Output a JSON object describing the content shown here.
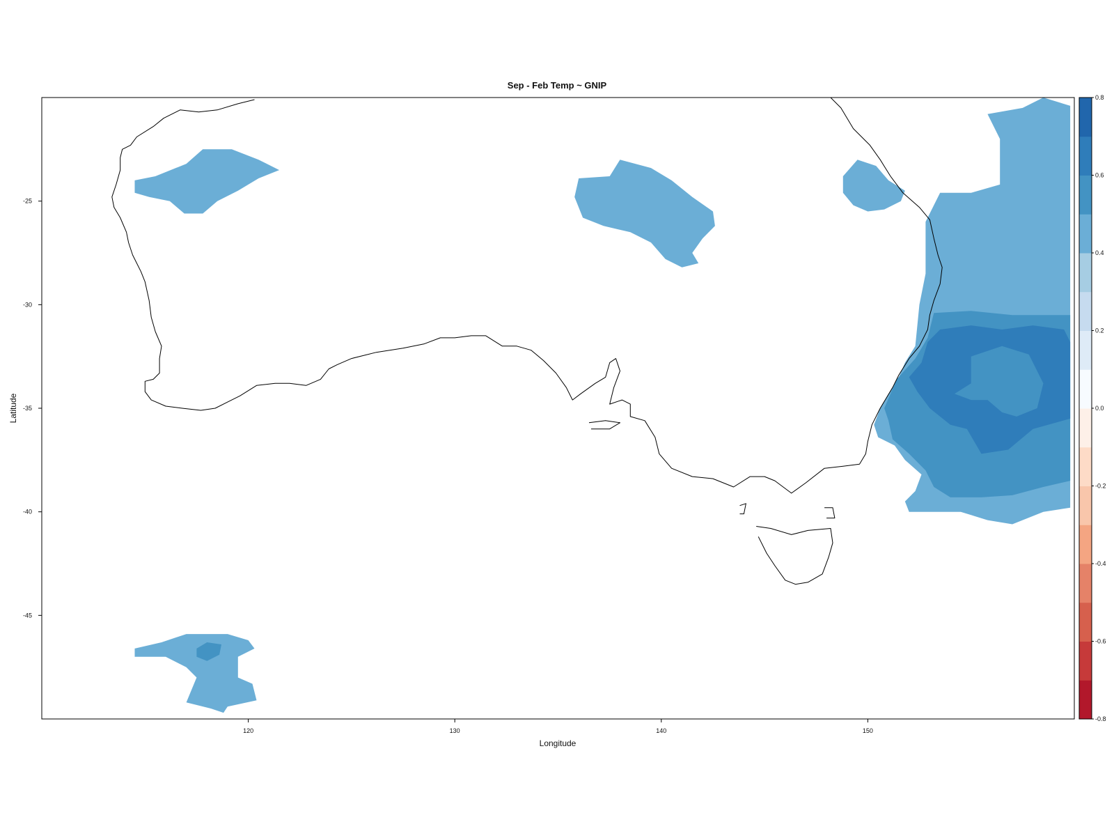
{
  "chart_data": {
    "type": "heatmap",
    "title": "Sep - Feb Temp ~ GNIP",
    "xlabel": "Longitude",
    "ylabel": "Latitude",
    "xlim": [
      110,
      160
    ],
    "ylim": [
      -50,
      -20
    ],
    "xticks": [
      120,
      130,
      140,
      150
    ],
    "xtick_labels": [
      "120",
      "130",
      "140",
      "150"
    ],
    "yticks": [
      -25,
      -30,
      -35,
      -40,
      -45
    ],
    "ytick_labels": [
      "-25",
      "-30",
      "-35",
      "-40",
      "-45"
    ],
    "grid": false,
    "colorbar": {
      "placement": "right",
      "range": [
        -0.8,
        0.8
      ],
      "bins": [
        {
          "from": -0.8,
          "to": -0.7,
          "color": "#b2182b"
        },
        {
          "from": -0.7,
          "to": -0.6,
          "color": "#c63a3a"
        },
        {
          "from": -0.6,
          "to": -0.5,
          "color": "#d6604d"
        },
        {
          "from": -0.5,
          "to": -0.4,
          "color": "#e58268"
        },
        {
          "from": -0.4,
          "to": -0.3,
          "color": "#f4a582"
        },
        {
          "from": -0.3,
          "to": -0.2,
          "color": "#f9c6ab"
        },
        {
          "from": -0.2,
          "to": -0.1,
          "color": "#fddbc7"
        },
        {
          "from": -0.1,
          "to": 0.0,
          "color": "#fdf0e8"
        },
        {
          "from": 0.0,
          "to": 0.1,
          "color": "#f7fbff"
        },
        {
          "from": 0.1,
          "to": 0.2,
          "color": "#deebf7"
        },
        {
          "from": 0.2,
          "to": 0.3,
          "color": "#c6dbef"
        },
        {
          "from": 0.3,
          "to": 0.4,
          "color": "#a6cde3"
        },
        {
          "from": 0.4,
          "to": 0.5,
          "color": "#6baed6"
        },
        {
          "from": 0.5,
          "to": 0.6,
          "color": "#4393c3"
        },
        {
          "from": 0.6,
          "to": 0.7,
          "color": "#2f7dba"
        },
        {
          "from": 0.7,
          "to": 0.8,
          "color": "#2166ac"
        }
      ],
      "ticks": [
        0.8,
        0.6,
        0.4,
        0.2,
        0.0,
        -0.2,
        -0.4,
        -0.6,
        -0.8
      ],
      "tick_labels": [
        "0.8",
        "0.6",
        "0.4",
        "0.2",
        "0.0",
        "-0.2",
        "-0.4",
        "-0.6",
        "-0.8"
      ]
    },
    "regions": [
      {
        "value": 0.45,
        "polygon": [
          [
            115.5,
            -23.8
          ],
          [
            117.0,
            -23.2
          ],
          [
            117.8,
            -22.5
          ],
          [
            119.2,
            -22.5
          ],
          [
            120.5,
            -23.0
          ],
          [
            121.5,
            -23.5
          ],
          [
            120.5,
            -23.9
          ],
          [
            119.5,
            -24.5
          ],
          [
            118.5,
            -25.0
          ],
          [
            117.8,
            -25.6
          ],
          [
            116.9,
            -25.6
          ],
          [
            116.2,
            -25.0
          ],
          [
            115.2,
            -24.8
          ],
          [
            114.5,
            -24.6
          ],
          [
            114.5,
            -24.0
          ]
        ]
      },
      {
        "value": 0.45,
        "polygon": [
          [
            136.0,
            -23.9
          ],
          [
            137.5,
            -23.8
          ],
          [
            138.0,
            -23.0
          ],
          [
            139.5,
            -23.4
          ],
          [
            140.5,
            -24.0
          ],
          [
            141.5,
            -24.8
          ],
          [
            142.5,
            -25.5
          ],
          [
            142.6,
            -26.2
          ],
          [
            142.0,
            -26.8
          ],
          [
            141.5,
            -27.5
          ],
          [
            141.8,
            -28.0
          ],
          [
            141.0,
            -28.2
          ],
          [
            140.2,
            -27.8
          ],
          [
            139.5,
            -27.0
          ],
          [
            138.5,
            -26.5
          ],
          [
            137.2,
            -26.2
          ],
          [
            136.2,
            -25.8
          ],
          [
            135.8,
            -24.8
          ]
        ]
      },
      {
        "value": 0.45,
        "polygon": [
          [
            148.8,
            -23.8
          ],
          [
            149.5,
            -23.0
          ],
          [
            150.4,
            -23.3
          ],
          [
            151.0,
            -24.0
          ],
          [
            151.8,
            -24.5
          ],
          [
            151.6,
            -25.0
          ],
          [
            150.8,
            -25.4
          ],
          [
            150.0,
            -25.5
          ],
          [
            149.3,
            -25.2
          ],
          [
            148.8,
            -24.6
          ]
        ]
      },
      {
        "value": 0.45,
        "polygon": [
          [
            152.8,
            -26.0
          ],
          [
            153.5,
            -24.6
          ],
          [
            155.0,
            -24.6
          ],
          [
            156.4,
            -24.2
          ],
          [
            156.4,
            -22.0
          ],
          [
            155.8,
            -20.8
          ],
          [
            157.5,
            -20.5
          ],
          [
            158.5,
            -20.0
          ],
          [
            159.8,
            -20.4
          ],
          [
            159.8,
            -39.8
          ],
          [
            158.5,
            -40.0
          ],
          [
            157.0,
            -40.6
          ],
          [
            155.8,
            -40.4
          ],
          [
            154.5,
            -40.0
          ],
          [
            152.0,
            -40.0
          ],
          [
            151.8,
            -39.5
          ],
          [
            152.3,
            -39.0
          ],
          [
            152.6,
            -38.2
          ],
          [
            151.8,
            -37.5
          ],
          [
            151.3,
            -36.8
          ],
          [
            150.5,
            -36.4
          ],
          [
            150.3,
            -35.8
          ],
          [
            150.6,
            -35.0
          ],
          [
            151.0,
            -34.3
          ],
          [
            151.5,
            -33.5
          ],
          [
            151.8,
            -32.8
          ],
          [
            152.3,
            -32.0
          ],
          [
            152.5,
            -30.0
          ],
          [
            152.8,
            -28.5
          ]
        ]
      },
      {
        "value": 0.55,
        "polygon": [
          [
            150.8,
            -35.0
          ],
          [
            151.4,
            -33.6
          ],
          [
            152.3,
            -32.6
          ],
          [
            152.9,
            -31.6
          ],
          [
            153.2,
            -30.4
          ],
          [
            155.0,
            -30.3
          ],
          [
            157.0,
            -30.5
          ],
          [
            159.8,
            -30.5
          ],
          [
            159.8,
            -38.5
          ],
          [
            158.5,
            -38.8
          ],
          [
            157.0,
            -39.2
          ],
          [
            155.5,
            -39.3
          ],
          [
            154.0,
            -39.3
          ],
          [
            153.2,
            -38.8
          ],
          [
            152.8,
            -38.0
          ],
          [
            152.0,
            -37.2
          ],
          [
            151.2,
            -36.5
          ],
          [
            151.0,
            -35.6
          ]
        ]
      },
      {
        "value": 0.65,
        "polygon": [
          [
            152.0,
            -33.5
          ],
          [
            152.6,
            -32.8
          ],
          [
            152.9,
            -31.8
          ],
          [
            153.5,
            -31.2
          ],
          [
            155.0,
            -31.0
          ],
          [
            156.5,
            -31.2
          ],
          [
            158.0,
            -31.0
          ],
          [
            159.5,
            -31.2
          ],
          [
            159.8,
            -31.8
          ],
          [
            159.8,
            -35.5
          ],
          [
            158.0,
            -36.0
          ],
          [
            156.8,
            -37.0
          ],
          [
            155.5,
            -37.2
          ],
          [
            154.8,
            -36.0
          ],
          [
            154.0,
            -35.8
          ],
          [
            153.0,
            -35.0
          ],
          [
            152.4,
            -34.2
          ]
        ]
      },
      {
        "value": 0.55,
        "polygon": [
          [
            154.2,
            -34.3
          ],
          [
            155.0,
            -33.8
          ],
          [
            155.0,
            -32.5
          ],
          [
            156.5,
            -32.0
          ],
          [
            157.8,
            -32.4
          ],
          [
            158.5,
            -33.8
          ],
          [
            158.2,
            -35.0
          ],
          [
            157.2,
            -35.4
          ],
          [
            156.5,
            -35.2
          ],
          [
            155.8,
            -34.6
          ],
          [
            155.0,
            -34.6
          ]
        ]
      },
      {
        "value": 0.45,
        "polygon": [
          [
            114.5,
            -46.6
          ],
          [
            115.8,
            -46.3
          ],
          [
            117.0,
            -45.9
          ],
          [
            119.0,
            -45.9
          ],
          [
            120.0,
            -46.2
          ],
          [
            120.3,
            -46.6
          ],
          [
            119.5,
            -47.0
          ],
          [
            119.5,
            -48.0
          ],
          [
            120.2,
            -48.3
          ],
          [
            120.4,
            -49.1
          ],
          [
            119.0,
            -49.4
          ],
          [
            118.8,
            -49.7
          ],
          [
            118.2,
            -49.5
          ],
          [
            117.0,
            -49.2
          ],
          [
            117.5,
            -48.0
          ],
          [
            117.0,
            -47.5
          ],
          [
            116.0,
            -47.0
          ],
          [
            114.5,
            -47.0
          ]
        ]
      },
      {
        "value": 0.55,
        "polygon": [
          [
            117.5,
            -46.6
          ],
          [
            118.0,
            -46.3
          ],
          [
            118.7,
            -46.4
          ],
          [
            118.6,
            -46.9
          ],
          [
            118.0,
            -47.2
          ],
          [
            117.5,
            -47.0
          ]
        ]
      }
    ],
    "coastline": [
      [
        [
          120.3,
          -20.1
        ],
        [
          119.5,
          -20.3
        ],
        [
          118.5,
          -20.6
        ],
        [
          117.6,
          -20.7
        ],
        [
          116.7,
          -20.6
        ],
        [
          115.9,
          -21.0
        ],
        [
          115.4,
          -21.4
        ],
        [
          114.6,
          -21.9
        ],
        [
          114.3,
          -22.3
        ],
        [
          113.9,
          -22.5
        ],
        [
          113.8,
          -22.9
        ],
        [
          113.8,
          -23.5
        ],
        [
          113.6,
          -24.2
        ],
        [
          113.4,
          -24.8
        ],
        [
          113.5,
          -25.3
        ],
        [
          113.8,
          -25.8
        ],
        [
          114.1,
          -26.5
        ],
        [
          114.2,
          -27.0
        ],
        [
          114.4,
          -27.6
        ],
        [
          114.8,
          -28.4
        ],
        [
          115.0,
          -28.9
        ],
        [
          115.2,
          -29.8
        ],
        [
          115.3,
          -30.6
        ],
        [
          115.5,
          -31.3
        ],
        [
          115.8,
          -32.0
        ],
        [
          115.7,
          -32.6
        ],
        [
          115.7,
          -33.3
        ],
        [
          115.4,
          -33.6
        ],
        [
          115.0,
          -33.7
        ],
        [
          115.0,
          -34.2
        ],
        [
          115.3,
          -34.6
        ],
        [
          116.0,
          -34.9
        ],
        [
          116.8,
          -35.0
        ],
        [
          117.7,
          -35.1
        ],
        [
          118.4,
          -35.0
        ],
        [
          119.0,
          -34.7
        ],
        [
          119.6,
          -34.4
        ],
        [
          120.4,
          -33.9
        ],
        [
          121.3,
          -33.8
        ],
        [
          122.0,
          -33.8
        ],
        [
          122.8,
          -33.9
        ],
        [
          123.5,
          -33.6
        ],
        [
          123.9,
          -33.1
        ],
        [
          124.3,
          -32.9
        ],
        [
          125.0,
          -32.6
        ],
        [
          126.2,
          -32.3
        ],
        [
          127.5,
          -32.1
        ],
        [
          128.5,
          -31.9
        ],
        [
          129.3,
          -31.6
        ],
        [
          130.0,
          -31.6
        ],
        [
          130.8,
          -31.5
        ],
        [
          131.5,
          -31.5
        ],
        [
          132.3,
          -32.0
        ],
        [
          133.0,
          -32.0
        ],
        [
          133.7,
          -32.2
        ],
        [
          134.3,
          -32.7
        ],
        [
          134.9,
          -33.3
        ],
        [
          135.4,
          -34.0
        ],
        [
          135.7,
          -34.6
        ],
        [
          136.1,
          -34.3
        ],
        [
          136.8,
          -33.8
        ],
        [
          137.3,
          -33.5
        ],
        [
          137.5,
          -32.8
        ],
        [
          137.8,
          -32.6
        ],
        [
          138.0,
          -33.2
        ],
        [
          137.7,
          -34.0
        ],
        [
          137.5,
          -34.8
        ],
        [
          138.1,
          -34.6
        ],
        [
          138.5,
          -34.8
        ],
        [
          138.5,
          -35.4
        ],
        [
          139.2,
          -35.6
        ],
        [
          139.7,
          -36.4
        ],
        [
          139.9,
          -37.2
        ],
        [
          140.5,
          -37.9
        ],
        [
          141.5,
          -38.3
        ],
        [
          142.5,
          -38.4
        ],
        [
          143.5,
          -38.8
        ],
        [
          144.3,
          -38.3
        ],
        [
          145.0,
          -38.3
        ],
        [
          145.5,
          -38.5
        ],
        [
          146.3,
          -39.1
        ],
        [
          147.0,
          -38.6
        ],
        [
          147.9,
          -37.9
        ],
        [
          148.8,
          -37.8
        ],
        [
          149.6,
          -37.7
        ],
        [
          149.9,
          -37.2
        ],
        [
          150.0,
          -36.6
        ],
        [
          150.2,
          -35.8
        ],
        [
          150.6,
          -35.0
        ],
        [
          150.9,
          -34.5
        ],
        [
          151.2,
          -34.0
        ],
        [
          151.5,
          -33.4
        ],
        [
          152.0,
          -32.6
        ],
        [
          152.5,
          -32.0
        ],
        [
          152.9,
          -31.2
        ],
        [
          153.0,
          -30.5
        ],
        [
          153.2,
          -29.8
        ],
        [
          153.5,
          -29.0
        ],
        [
          153.6,
          -28.2
        ],
        [
          153.4,
          -27.6
        ],
        [
          153.2,
          -26.8
        ],
        [
          153.0,
          -25.9
        ],
        [
          152.5,
          -25.3
        ],
        [
          151.7,
          -24.6
        ],
        [
          151.1,
          -23.8
        ],
        [
          150.6,
          -23.0
        ],
        [
          150.1,
          -22.3
        ],
        [
          149.3,
          -21.5
        ],
        [
          148.7,
          -20.5
        ],
        [
          148.2,
          -20.0
        ]
      ],
      [
        [
          136.5,
          -35.7
        ],
        [
          137.3,
          -35.6
        ],
        [
          138.0,
          -35.7
        ],
        [
          137.5,
          -36.0
        ],
        [
          136.6,
          -36.0
        ]
      ],
      [
        [
          144.6,
          -40.7
        ],
        [
          145.3,
          -40.8
        ],
        [
          146.3,
          -41.1
        ],
        [
          147.1,
          -40.9
        ],
        [
          148.2,
          -40.8
        ],
        [
          148.3,
          -41.5
        ],
        [
          148.1,
          -42.2
        ],
        [
          147.8,
          -43.0
        ],
        [
          147.1,
          -43.4
        ],
        [
          146.5,
          -43.5
        ],
        [
          146.0,
          -43.3
        ],
        [
          145.5,
          -42.6
        ],
        [
          145.1,
          -42.0
        ],
        [
          144.7,
          -41.2
        ]
      ],
      [
        [
          143.8,
          -39.7
        ],
        [
          144.1,
          -39.6
        ],
        [
          144.0,
          -40.1
        ],
        [
          143.8,
          -40.1
        ]
      ],
      [
        [
          147.9,
          -39.8
        ],
        [
          148.3,
          -39.8
        ],
        [
          148.4,
          -40.3
        ],
        [
          148.0,
          -40.3
        ]
      ]
    ]
  }
}
